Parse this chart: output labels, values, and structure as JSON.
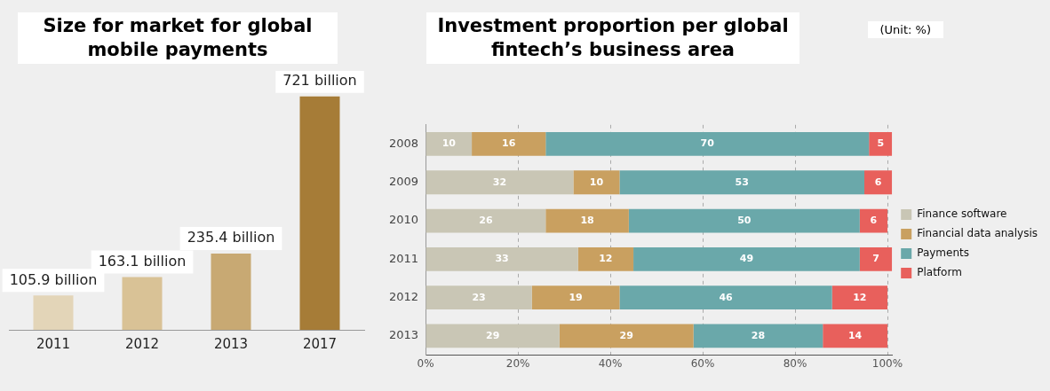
{
  "chart_data": [
    {
      "type": "bar",
      "title": "Size for market for global mobile payments",
      "categories": [
        "2011",
        "2012",
        "2013",
        "2017"
      ],
      "values": [
        105.9,
        163.1,
        235.4,
        721
      ],
      "colors": [
        "#e3d5b8",
        "#d9c296",
        "#c8a973",
        "#a67c37"
      ],
      "value_labels": [
        "105.9 billion",
        "163.1 billion",
        "235.4 billion",
        "721 billion"
      ],
      "grid": false,
      "legend": false
    },
    {
      "type": "bar",
      "title": "Investment proportion per global fintech’s business area",
      "annotations": [
        "(Unit: %)"
      ],
      "orientation": "horizontal",
      "stacked": true,
      "categories": [
        "2008",
        "2009",
        "2010",
        "2011",
        "2012",
        "2013"
      ],
      "series": [
        {
          "name": "Finance software",
          "color": "#c9c6b5",
          "values": [
            10,
            32,
            26,
            33,
            23,
            29
          ]
        },
        {
          "name": "Financial data analysis",
          "color": "#c9a060",
          "values": [
            16,
            10,
            18,
            12,
            19,
            29
          ]
        },
        {
          "name": "Payments",
          "color": "#6aa8aa",
          "values": [
            70,
            53,
            50,
            49,
            46,
            28
          ]
        },
        {
          "name": "Platform",
          "color": "#e8605c",
          "values": [
            5,
            6,
            6,
            7,
            12,
            14
          ]
        }
      ],
      "xlim": [
        0,
        101
      ],
      "xticks": [
        {
          "value": 0,
          "label": "0%"
        },
        {
          "value": 20,
          "label": "20%"
        },
        {
          "value": 40,
          "label": "40%"
        },
        {
          "value": 60,
          "label": "60%"
        },
        {
          "value": 80,
          "label": "80%"
        },
        {
          "value": 100,
          "label": "100%"
        }
      ],
      "grid": "x",
      "legend": "right",
      "data_labels": true
    }
  ]
}
